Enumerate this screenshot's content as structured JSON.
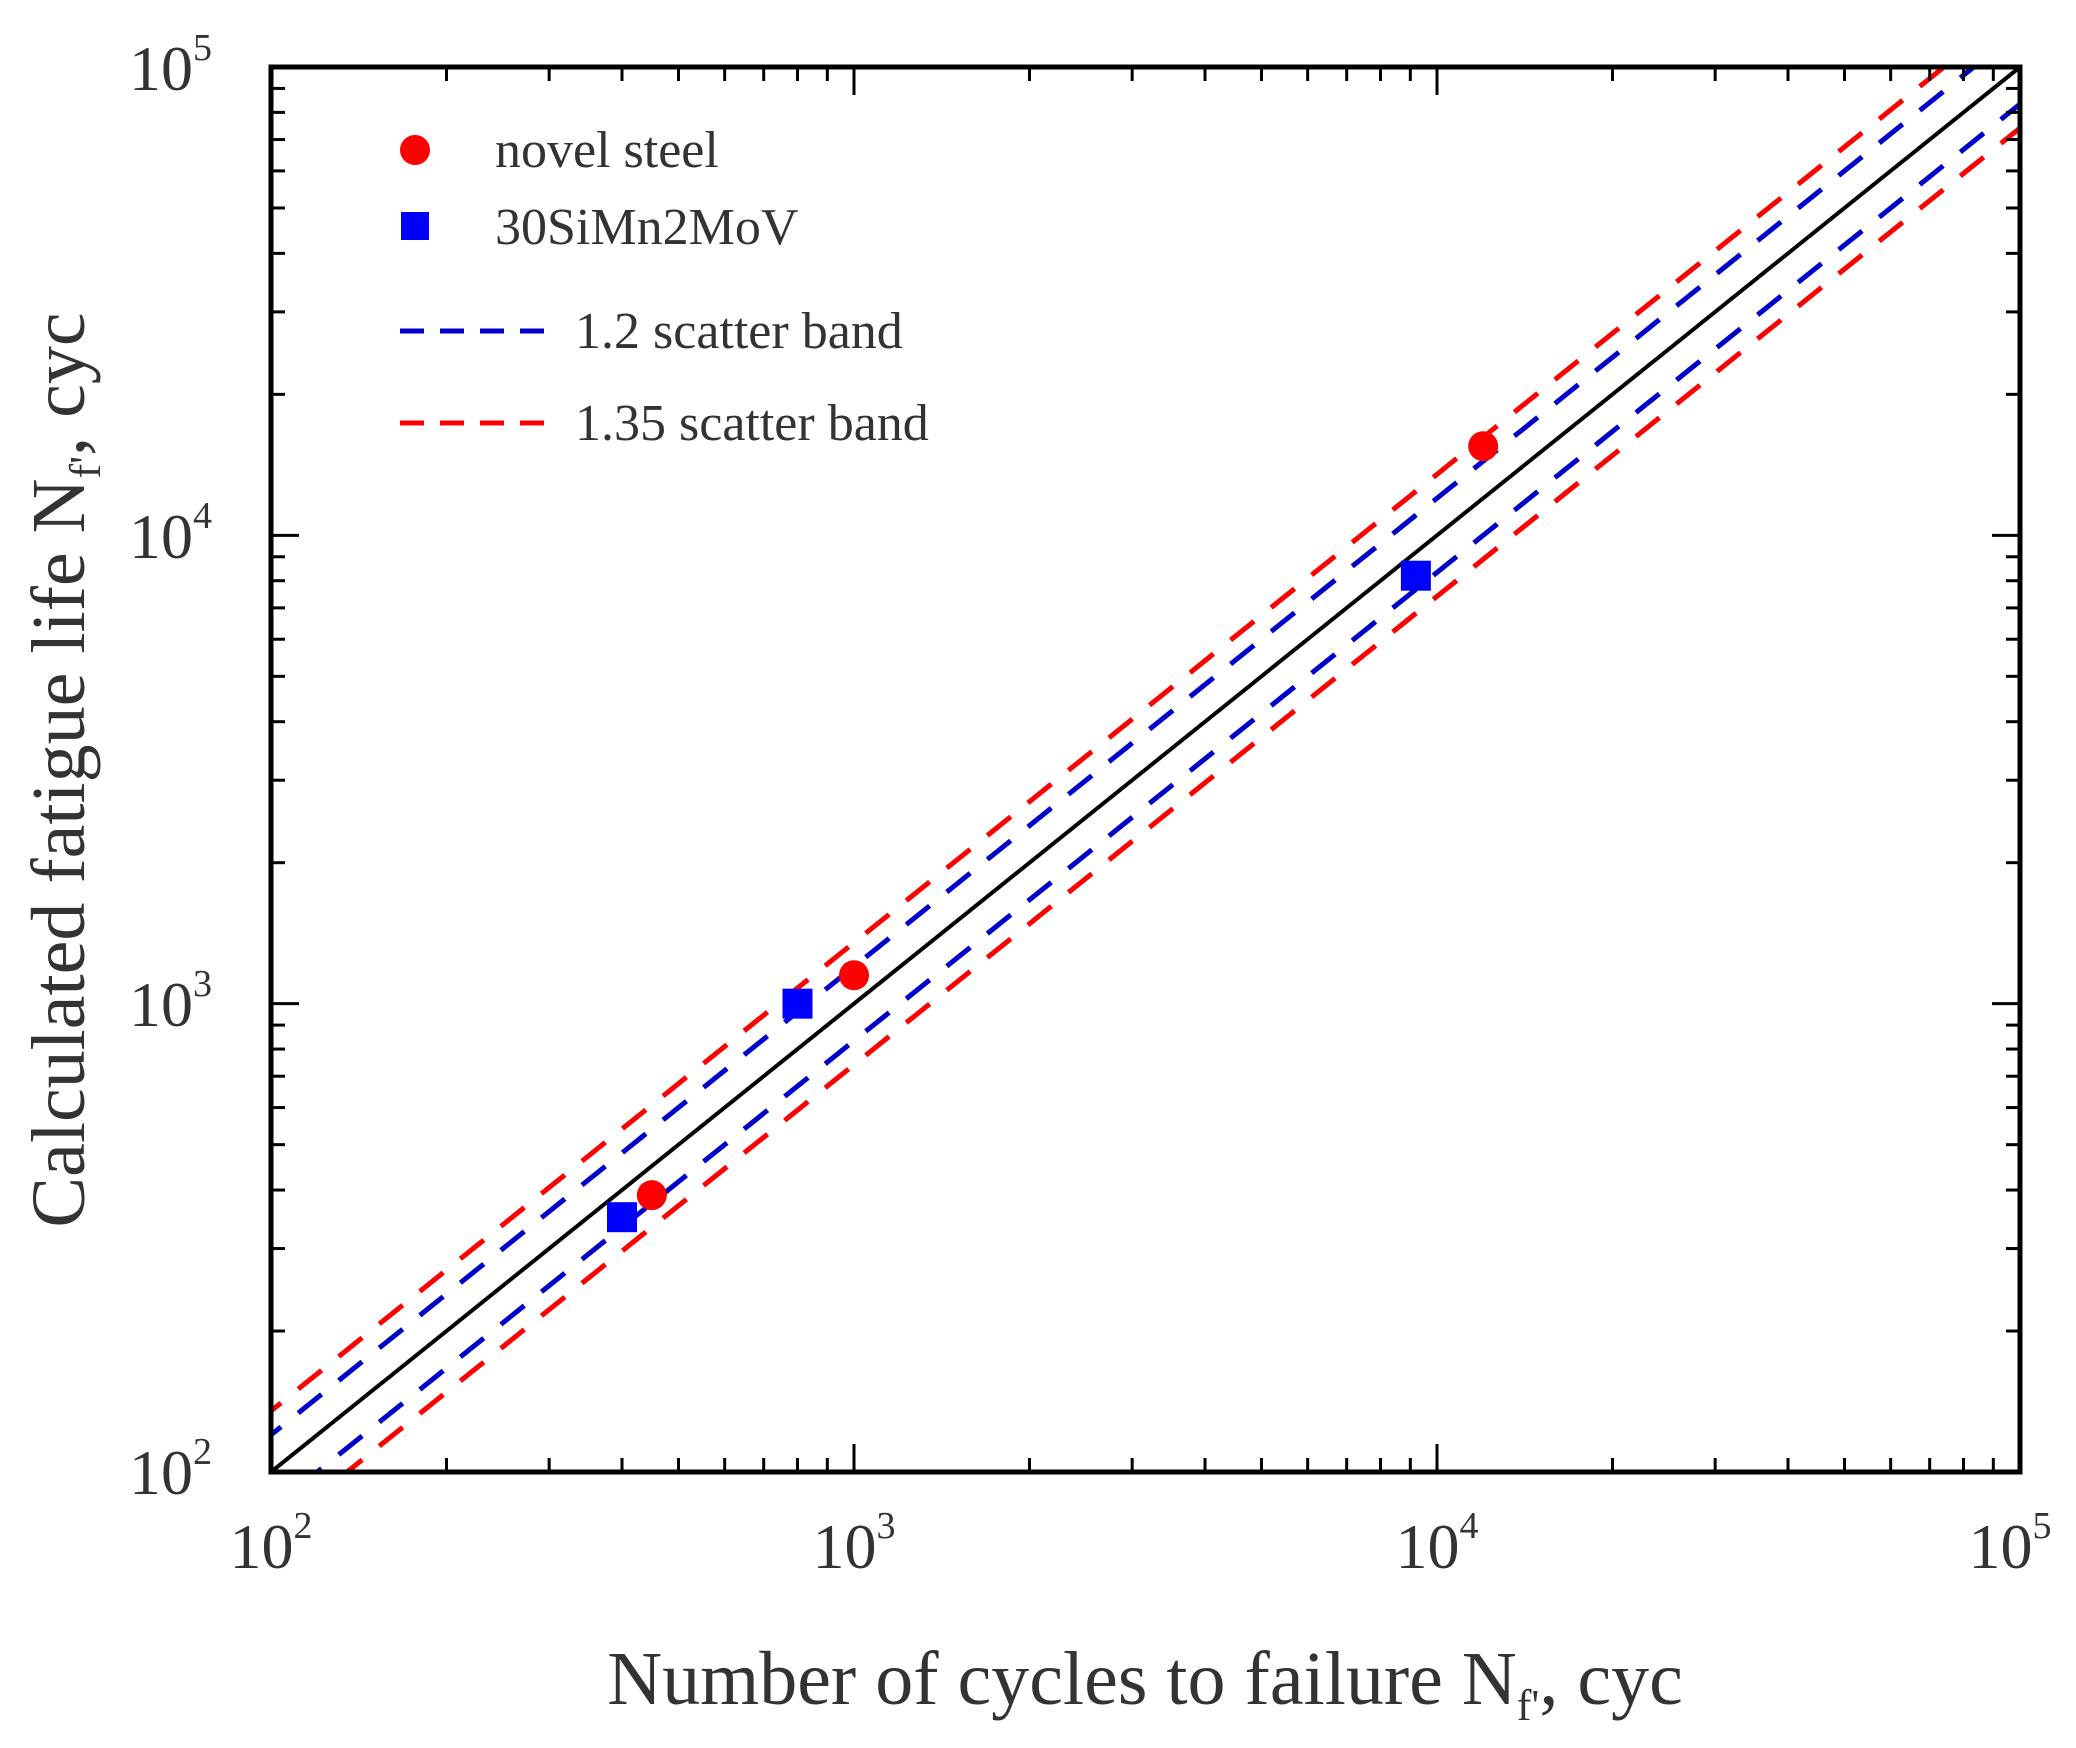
{
  "chart_data": {
    "type": "scatter",
    "title": "",
    "xlabel": "Number of cycles to failure N",
    "xlabel_sub": "f'",
    "xlabel_tail": ", cyc",
    "ylabel": "Calculated fatigue life N",
    "ylabel_sub": "f'",
    "ylabel_tail": ", cyc",
    "xscale": "log",
    "yscale": "log",
    "xlim": [
      100,
      100000
    ],
    "ylim": [
      100,
      100000
    ],
    "grid": false,
    "legend_position": "top-left",
    "x_ticks": [
      {
        "base": "10",
        "exp": "2"
      },
      {
        "base": "10",
        "exp": "3"
      },
      {
        "base": "10",
        "exp": "4"
      },
      {
        "base": "10",
        "exp": "5"
      }
    ],
    "y_ticks": [
      {
        "base": "10",
        "exp": "2"
      },
      {
        "base": "10",
        "exp": "3"
      },
      {
        "base": "10",
        "exp": "4"
      },
      {
        "base": "10",
        "exp": "5"
      }
    ],
    "series": [
      {
        "name": "novel steel",
        "marker": "circle",
        "color": "#ff0000",
        "points": [
          [
            450,
            390
          ],
          [
            1000,
            1150
          ],
          [
            12000,
            15500
          ]
        ]
      },
      {
        "name": "30SiMn2MoV",
        "marker": "square",
        "color": "#0000ff",
        "points": [
          [
            400,
            350
          ],
          [
            800,
            1000
          ],
          [
            9200,
            8200
          ]
        ]
      }
    ],
    "lines": [
      {
        "name": "1:1 line",
        "factor": 1.0,
        "color": "#000000",
        "style": "solid",
        "in_legend": false
      },
      {
        "name": "1.2 scatter band",
        "factors": [
          1.2,
          0.8333
        ],
        "color": "#0000cc",
        "style": "dashed",
        "in_legend": true
      },
      {
        "name": "1.35 scatter band",
        "factors": [
          1.35,
          0.7407
        ],
        "color": "#ff0000",
        "style": "dashed",
        "in_legend": true
      }
    ]
  }
}
